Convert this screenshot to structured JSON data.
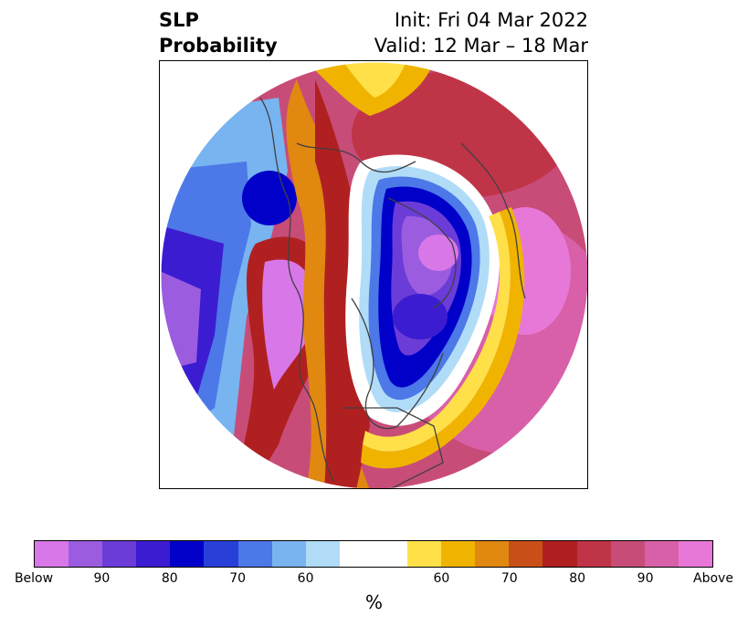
{
  "title": {
    "variable": "SLP",
    "subtitle": "Probability",
    "init": "Init: Fri 04 Mar 2022",
    "valid": "Valid: 12 Mar – 18 Mar"
  },
  "colorbar": {
    "label": "%",
    "ticks": [
      "Below",
      "90",
      "80",
      "70",
      "60",
      "",
      "60",
      "70",
      "80",
      "90",
      "Above"
    ],
    "colors": [
      "#d878e8",
      "#9c5ce0",
      "#6c3cd8",
      "#3c1cd0",
      "#0000c8",
      "#2840d8",
      "#4c78e8",
      "#78b4f0",
      "#b0dcf8",
      "#ffffff",
      "#ffffff",
      "#ffe048",
      "#f0b400",
      "#e08810",
      "#c85018",
      "#b02020",
      "#c03448",
      "#c84c78",
      "#d860a8",
      "#e878d8"
    ]
  }
}
